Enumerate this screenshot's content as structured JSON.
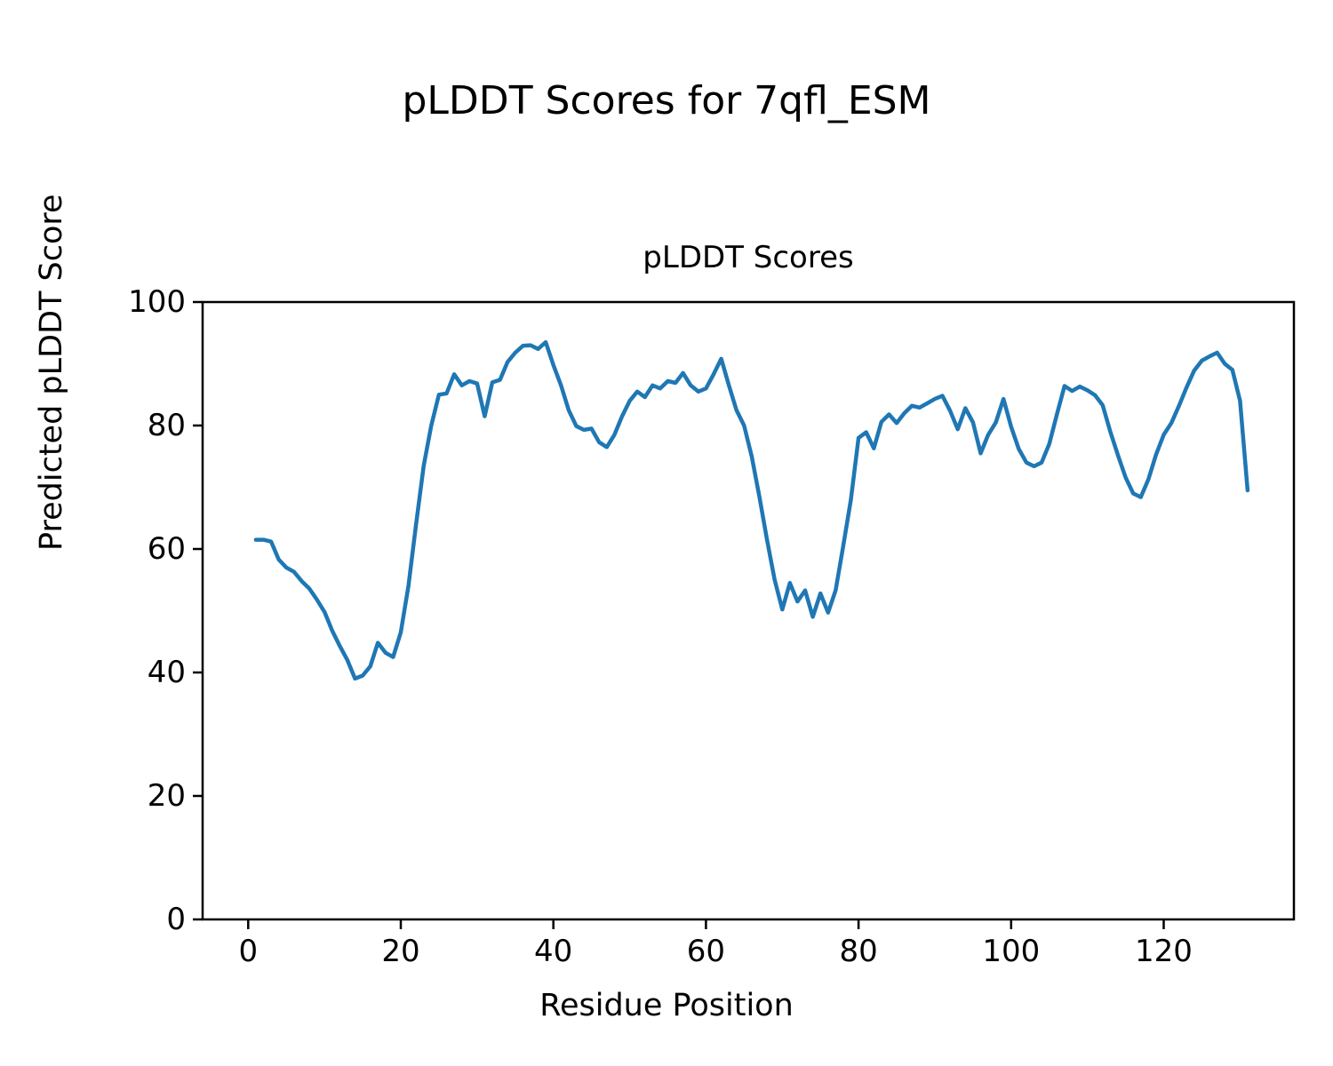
{
  "figure": {
    "suptitle": "pLDDT Scores for 7qfl_ESM",
    "axes_title": "pLDDT Scores",
    "xlabel": "Residue Position",
    "ylabel": "Predicted pLDDT Score",
    "background_color": "#ffffff",
    "text_color": "#000000",
    "spine_color": "#000000",
    "line_color": "#1f77b4"
  },
  "chart_data": {
    "type": "line",
    "title": "pLDDT Scores",
    "suptitle": "pLDDT Scores for 7qfl_ESM",
    "xlabel": "Residue Position",
    "ylabel": "Predicted pLDDT Score",
    "series_name": "pLDDT",
    "x_start": 1,
    "x_step": 1,
    "values": [
      61.5,
      61.5,
      61.2,
      58.3,
      57.0,
      56.3,
      54.8,
      53.6,
      51.8,
      49.8,
      46.8,
      44.3,
      42.0,
      39.0,
      39.5,
      41.0,
      44.8,
      43.2,
      42.5,
      46.5,
      54.0,
      64.0,
      73.5,
      80.0,
      85.0,
      85.2,
      88.3,
      86.5,
      87.2,
      86.8,
      81.5,
      87.0,
      87.4,
      90.3,
      91.8,
      92.9,
      93.0,
      92.4,
      93.5,
      89.8,
      86.5,
      82.5,
      79.9,
      79.3,
      79.5,
      77.3,
      76.5,
      78.5,
      81.5,
      84.0,
      85.5,
      84.6,
      86.5,
      86.0,
      87.2,
      86.9,
      88.5,
      86.5,
      85.5,
      86.0,
      88.3,
      90.8,
      86.5,
      82.5,
      80.0,
      75.0,
      68.5,
      61.5,
      55.0,
      50.2,
      54.5,
      51.5,
      53.3,
      49.0,
      52.8,
      49.7,
      53.3,
      60.5,
      68.0,
      78.0,
      78.9,
      76.3,
      80.6,
      81.8,
      80.4,
      82.0,
      83.2,
      82.9,
      83.6,
      84.3,
      84.8,
      82.4,
      79.4,
      82.8,
      80.5,
      75.5,
      78.5,
      80.5,
      84.3,
      79.8,
      76.2,
      74.0,
      73.4,
      74.0,
      77.0,
      81.8,
      86.4,
      85.6,
      86.3,
      85.7,
      84.9,
      83.3,
      79.0,
      75.2,
      71.6,
      69.0,
      68.4,
      71.3,
      75.3,
      78.5,
      80.4,
      83.2,
      86.2,
      88.9,
      90.5,
      91.2,
      91.8,
      90.0,
      89.0,
      84.0,
      69.5
    ],
    "xlim": [
      -6,
      137
    ],
    "ylim": [
      0,
      100
    ],
    "xticks": [
      0,
      20,
      40,
      60,
      80,
      100,
      120
    ],
    "yticks": [
      0,
      20,
      40,
      60,
      80,
      100
    ],
    "grid": false,
    "legend": null,
    "line_color": "#1f77b4"
  }
}
